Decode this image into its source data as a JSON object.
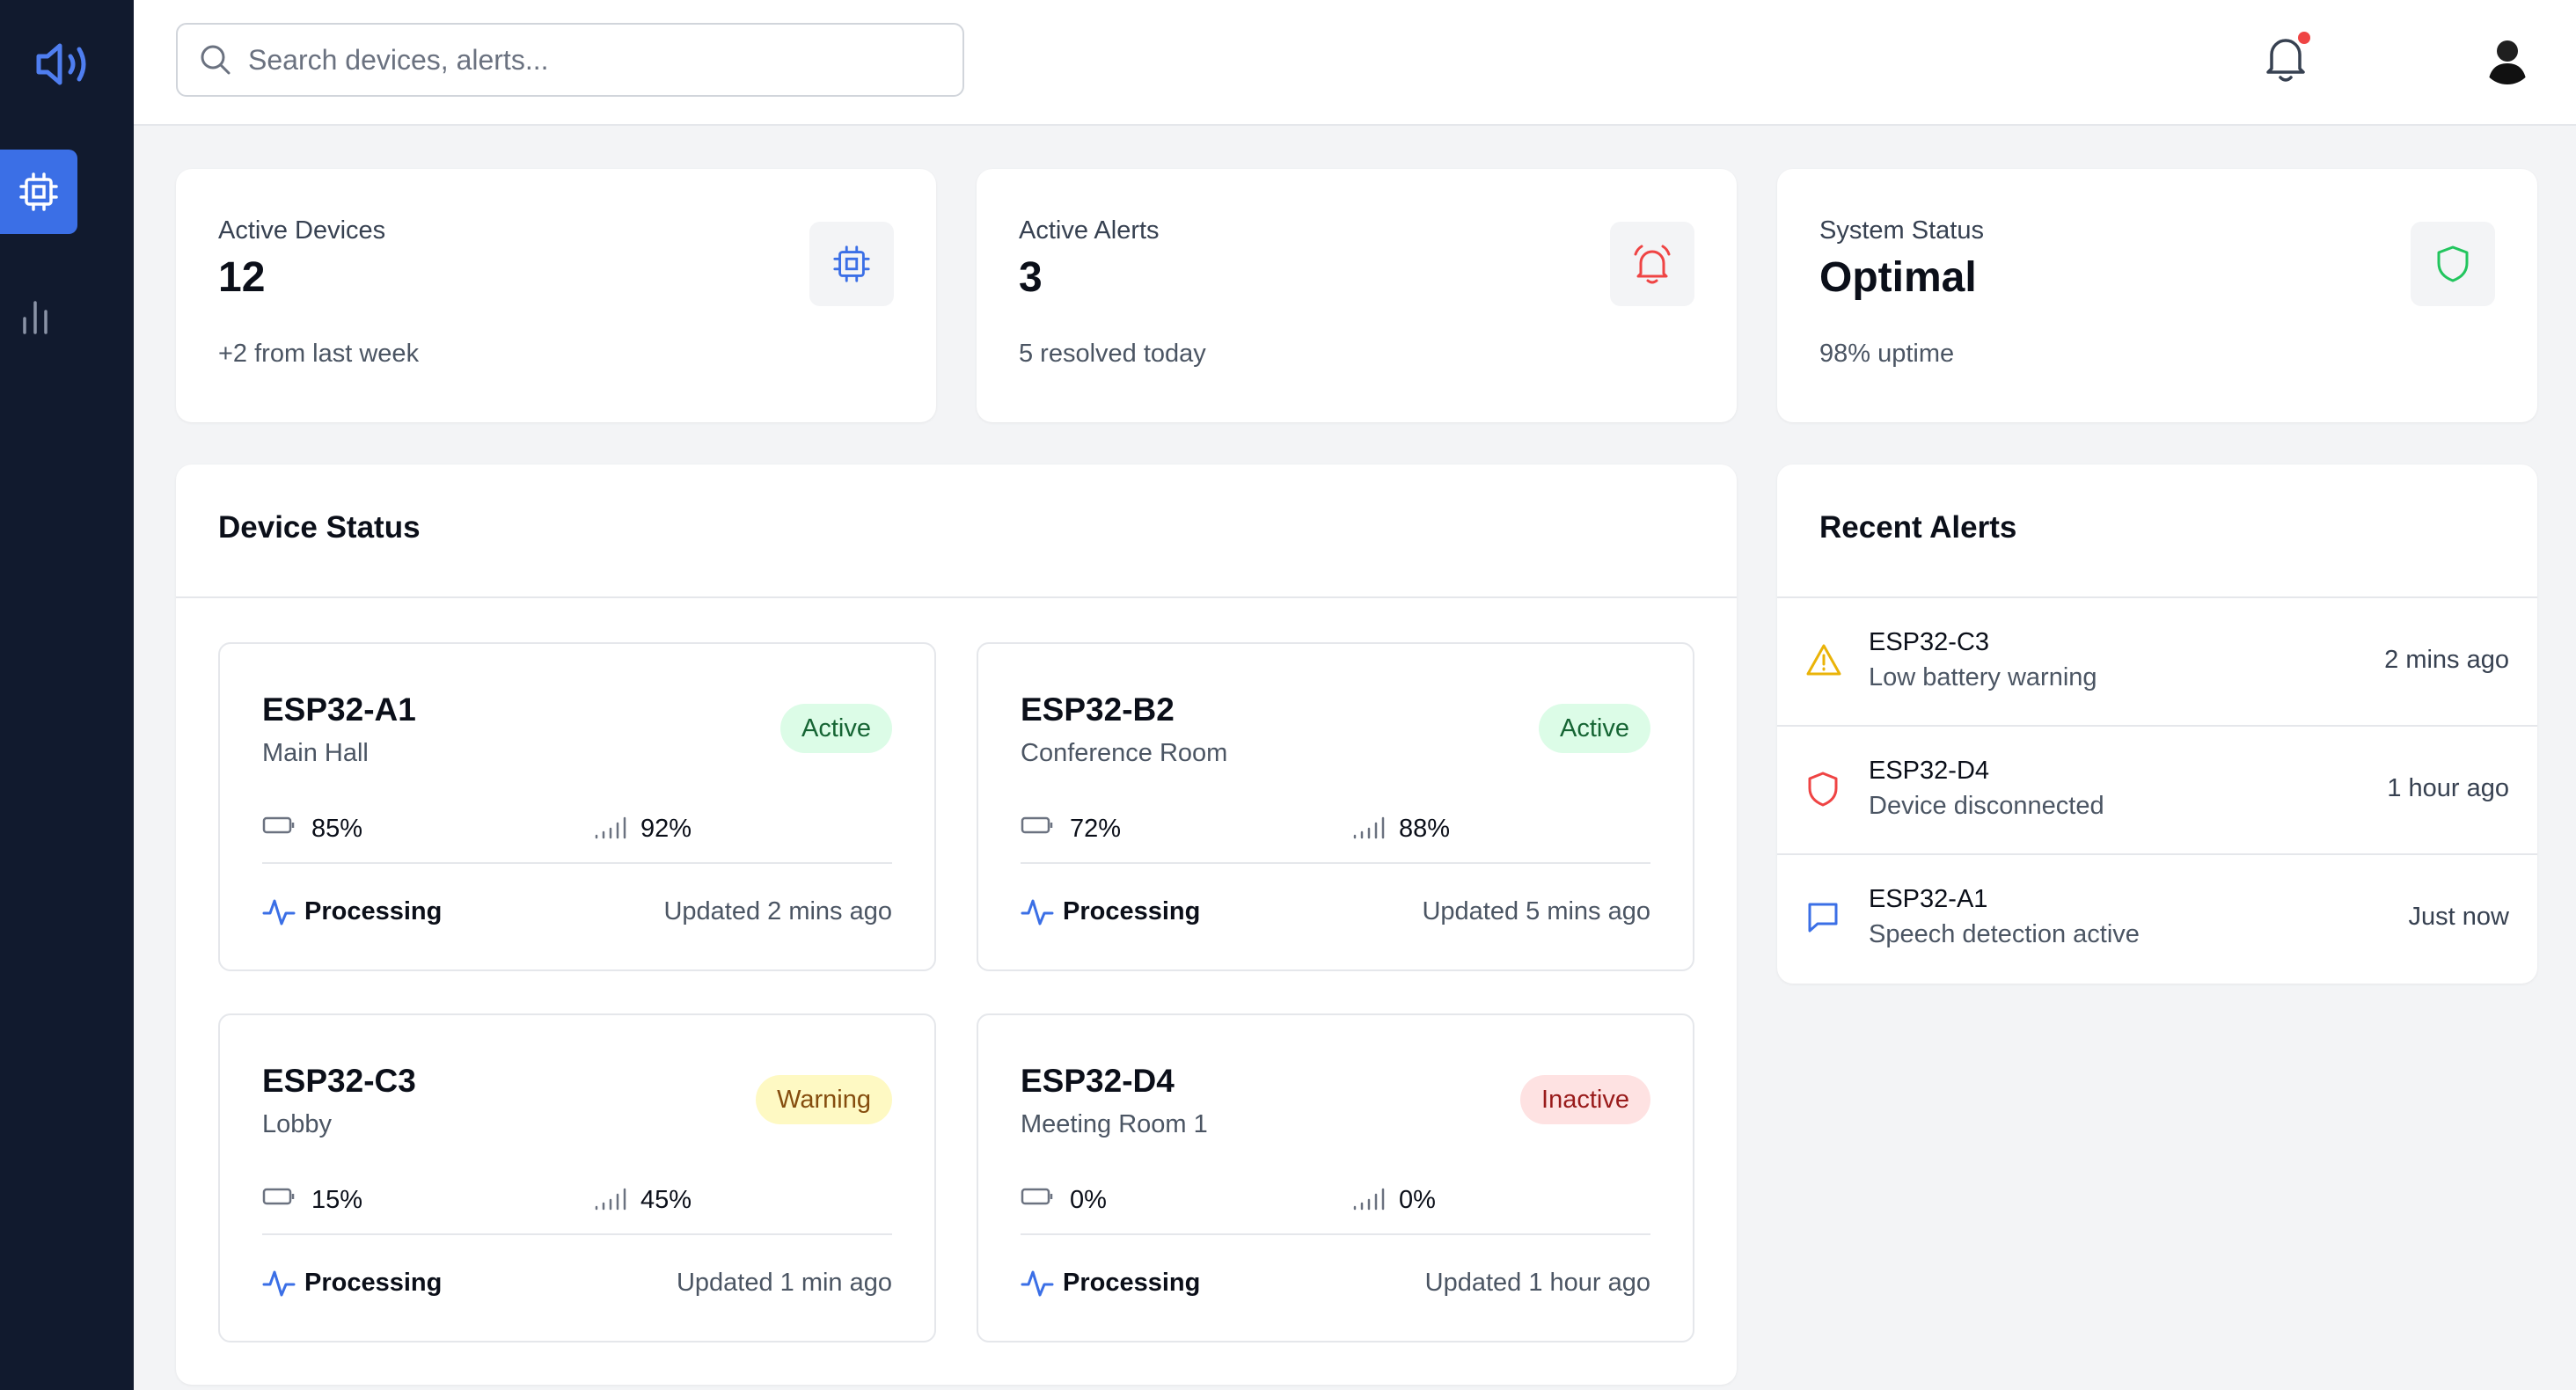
{
  "search": {
    "placeholder": "Search devices, alerts..."
  },
  "stats": [
    {
      "title": "Active Devices",
      "value": "12",
      "sub": "+2 from last week",
      "icon": "cpu-chip-icon",
      "color": "#3b6fe6"
    },
    {
      "title": "Active Alerts",
      "value": "3",
      "sub": "5 resolved today",
      "icon": "alarm-bell-icon",
      "color": "#ef4444"
    },
    {
      "title": "System Status",
      "value": "Optimal",
      "sub": "98% uptime",
      "icon": "shield-icon",
      "color": "#22c55e"
    }
  ],
  "device_status": {
    "title": "Device Status",
    "processing_label": "Processing",
    "devices": [
      {
        "name": "ESP32-A1",
        "location": "Main Hall",
        "status": "Active",
        "battery": "85%",
        "signal": "92%",
        "updated": "Updated 2 mins ago"
      },
      {
        "name": "ESP32-B2",
        "location": "Conference Room",
        "status": "Active",
        "battery": "72%",
        "signal": "88%",
        "updated": "Updated 5 mins ago"
      },
      {
        "name": "ESP32-C3",
        "location": "Lobby",
        "status": "Warning",
        "battery": "15%",
        "signal": "45%",
        "updated": "Updated 1 min ago"
      },
      {
        "name": "ESP32-D4",
        "location": "Meeting Room 1",
        "status": "Inactive",
        "battery": "0%",
        "signal": "0%",
        "updated": "Updated 1 hour ago"
      }
    ]
  },
  "recent_alerts": {
    "title": "Recent Alerts",
    "items": [
      {
        "device": "ESP32-C3",
        "message": "Low battery warning",
        "time": "2 mins ago",
        "icon": "warning-triangle-icon"
      },
      {
        "device": "ESP32-D4",
        "message": "Device disconnected",
        "time": "1 hour ago",
        "icon": "shield-alert-icon"
      },
      {
        "device": "ESP32-A1",
        "message": "Speech detection active",
        "time": "Just now",
        "icon": "message-icon"
      }
    ]
  },
  "colors": {
    "sidebar": "#111a2e",
    "accent": "#3b6fe6",
    "active_bg": "#dcfce7",
    "active_fg": "#166534",
    "warning_bg": "#fef9c3",
    "warning_fg": "#854d0e",
    "inactive_bg": "#fee2e2",
    "inactive_fg": "#991b1b"
  }
}
